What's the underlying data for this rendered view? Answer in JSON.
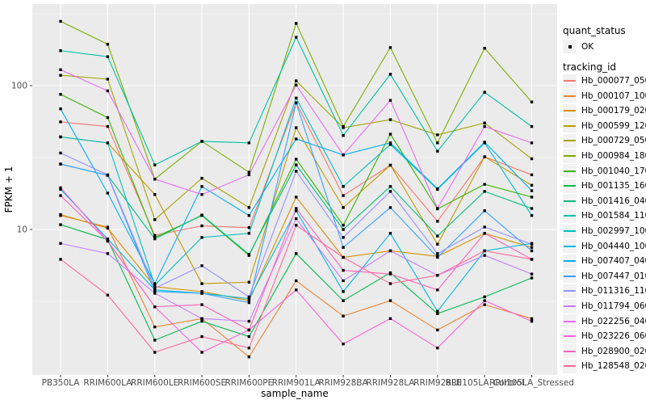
{
  "figure": {
    "x_axis_title": "sample_name",
    "y_axis_title": "FPKM + 1",
    "legend": {
      "quant_status_title": "quant_status",
      "quant_status_items": [
        {
          "label": "OK",
          "marker": "black-square-point"
        }
      ],
      "tracking_id_title": "tracking_id"
    }
  },
  "chart_data": {
    "type": "line",
    "title": "",
    "xlabel": "sample_name",
    "ylabel": "FPKM + 1",
    "y_scale": "log10",
    "ylim": [
      1.0,
      370
    ],
    "y_ticks": [
      {
        "value": 10,
        "label": "10"
      },
      {
        "value": 100,
        "label": "100"
      }
    ],
    "y_minor_ticks": [
      3.162,
      31.62,
      316.2
    ],
    "grid": true,
    "legend_position": "right",
    "panel_background": "#EBEBEB",
    "gridline_color": "#FFFFFF",
    "tick_label_color": "#4D4D4D",
    "point_shape": "square",
    "point_color": "#000000",
    "x_categories": [
      "PB350LA",
      "RRIM600LA",
      "RRIM600LE",
      "RRIM600SE",
      "RRIM600PE",
      "RRIM901LA",
      "RRIM928BA",
      "RRIM928LA",
      "RRIM928LE",
      "RRII105LA_Control",
      "RRII105LA_Stressed"
    ],
    "series": [
      {
        "name": "Hb_000077_050",
        "color": "#F8766D",
        "values": [
          56,
          52,
          9.1,
          10.6,
          10.3,
          76,
          17.2,
          28,
          11.4,
          32,
          24
        ]
      },
      {
        "name": "Hb_000107_100",
        "color": "#EA8331",
        "values": [
          12.5,
          10.4,
          2.1,
          2.4,
          1.3,
          4.4,
          2.5,
          3.2,
          2.0,
          3.0,
          2.4
        ]
      },
      {
        "name": "Hb_000179_020",
        "color": "#D89000",
        "values": [
          12.7,
          10.2,
          4.0,
          3.7,
          3.2,
          16.8,
          6.4,
          7.1,
          6.5,
          9.4,
          7.5
        ]
      },
      {
        "name": "Hb_000599_120",
        "color": "#C09B00",
        "values": [
          44,
          40,
          17.5,
          4.2,
          4.3,
          51,
          14.2,
          28,
          7.9,
          32,
          20.3
        ]
      },
      {
        "name": "Hb_000729_050",
        "color": "#A3A500",
        "values": [
          118,
          111,
          11.7,
          22.7,
          14.2,
          108,
          51,
          58,
          45.5,
          55,
          31
        ]
      },
      {
        "name": "Hb_000984_180",
        "color": "#7CAE00",
        "values": [
          280,
          194,
          22.4,
          41,
          25,
          271,
          52,
          184,
          40,
          182,
          77
        ]
      },
      {
        "name": "Hb_001040_170",
        "color": "#39B600",
        "values": [
          87,
          60,
          8.8,
          12.5,
          6.6,
          30.8,
          10.7,
          46,
          13.9,
          20.6,
          16.8
        ]
      },
      {
        "name": "Hb_001135_160",
        "color": "#00BB4E",
        "values": [
          10.8,
          8.5,
          1.7,
          2.3,
          1.8,
          6.8,
          3.2,
          5.0,
          2.6,
          3.4,
          4.6
        ]
      },
      {
        "name": "Hb_001416_040",
        "color": "#00BF7D",
        "values": [
          28.5,
          23.8,
          8.6,
          12.6,
          6.7,
          28.1,
          10.0,
          19.9,
          9.0,
          18.4,
          14.0
        ]
      },
      {
        "name": "Hb_001584_110",
        "color": "#00C1A3",
        "values": [
          175,
          159,
          28.1,
          41,
          40,
          217,
          45,
          120,
          35,
          90,
          52
        ]
      },
      {
        "name": "Hb_002997_100",
        "color": "#00BFC4",
        "values": [
          44,
          40,
          4.1,
          8.8,
          9.4,
          82,
          19.9,
          39,
          19,
          40,
          12.5
        ]
      },
      {
        "name": "Hb_004440_100",
        "color": "#00BAE0",
        "values": [
          19,
          8.6,
          3.8,
          3.6,
          3.3,
          13.5,
          3.7,
          9.4,
          2.7,
          7.1,
          8.0
        ]
      },
      {
        "name": "Hb_007407_040",
        "color": "#00B0F6",
        "values": [
          69,
          17.9,
          4.2,
          19.9,
          12.5,
          42.6,
          33,
          40,
          19.2,
          40.5,
          18.6
        ]
      },
      {
        "name": "Hb_007447_010",
        "color": "#35A2FF",
        "values": [
          28.5,
          23.8,
          3.7,
          3.6,
          3.1,
          76,
          7.5,
          14.2,
          6.4,
          13.5,
          7.1
        ]
      },
      {
        "name": "Hb_011316_110",
        "color": "#9590FF",
        "values": [
          34,
          24,
          3.9,
          5.6,
          3.4,
          25.4,
          8.8,
          18.4,
          6.8,
          10.4,
          7.9
        ]
      },
      {
        "name": "Hb_011794_060",
        "color": "#C77CFF",
        "values": [
          8.0,
          6.8,
          3.6,
          2.4,
          2.3,
          11.9,
          4.4,
          7.1,
          4.8,
          6.6,
          4.9
        ]
      },
      {
        "name": "Hb_022256_040",
        "color": "#E76BF3",
        "values": [
          129,
          92,
          22.4,
          17.5,
          24,
          101,
          33,
          79,
          14,
          52,
          40
        ]
      },
      {
        "name": "Hb_023226_060",
        "color": "#FA62DB",
        "values": [
          19.5,
          8.3,
          2.9,
          1.4,
          2.0,
          3.8,
          1.6,
          2.4,
          1.5,
          3.2,
          2.3
        ]
      },
      {
        "name": "Hb_028900_020",
        "color": "#FF62BC",
        "values": [
          17.2,
          8.3,
          2.9,
          3.0,
          2.0,
          14,
          5.2,
          4.9,
          3.8,
          9.4,
          6.2
        ]
      },
      {
        "name": "Hb_128548_020",
        "color": "#FF6A98",
        "values": [
          6.2,
          3.5,
          1.4,
          1.8,
          1.5,
          10.7,
          6.4,
          4.2,
          4.8,
          7.1,
          6.2
        ]
      }
    ]
  }
}
